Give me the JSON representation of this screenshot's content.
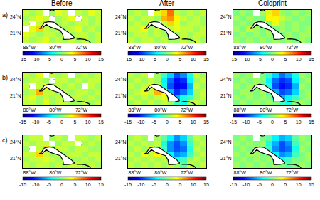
{
  "chart_data": {
    "type": "heatmap",
    "columns": [
      "Before",
      "After",
      "Coldprint"
    ],
    "rows": [
      "a)",
      "b)",
      "c)"
    ],
    "x": [
      -89,
      -87,
      -85,
      -83,
      -81,
      -79,
      -77,
      -75,
      -73,
      -71,
      -69,
      -67
    ],
    "y": [
      19.75,
      20.75,
      21.75,
      22.75,
      23.75,
      24.75
    ],
    "xlim": [
      -90,
      -66
    ],
    "ylim": [
      19.25,
      25.25
    ],
    "xticks": [
      {
        "value": -88,
        "label": "88°W"
      },
      {
        "value": -80,
        "label": "80°W"
      },
      {
        "value": -72,
        "label": "72°W"
      }
    ],
    "yticks": [
      {
        "value": 21,
        "label": "21°N"
      },
      {
        "value": 24,
        "label": "24°N"
      }
    ],
    "grid": true,
    "colorbar": {
      "range": [
        -15,
        15
      ],
      "ticks": [
        -15,
        -10,
        -5,
        0,
        5,
        10,
        15
      ]
    },
    "coastline": [
      {
        "lon": [
          -84.95,
          -84.4,
          -83.4,
          -82.0,
          -80.5,
          -79.0,
          -77.5,
          -76.0,
          -75.0,
          -74.2,
          -74.3,
          -75.6,
          -77.5,
          -77.7,
          -78.5,
          -80.0,
          -81.5,
          -82.8,
          -84.0,
          -84.95
        ],
        "lat": [
          21.85,
          22.0,
          22.9,
          23.1,
          23.0,
          22.4,
          21.8,
          21.2,
          20.7,
          20.2,
          20.05,
          19.9,
          19.85,
          20.7,
          21.5,
          21.8,
          22.1,
          22.6,
          21.9,
          21.85
        ]
      },
      {
        "lon": [
          -81.8,
          -81.2,
          -80.6,
          -80.3
        ],
        "lat": [
          25.25,
          25.1,
          25.15,
          25.25
        ]
      },
      {
        "lon": [
          -73.5,
          -72.5,
          -71.0,
          -69.8,
          -69.2
        ],
        "lat": [
          19.9,
          19.95,
          19.85,
          19.6,
          19.25
        ]
      }
    ],
    "panels": [
      [
        [
          [
            2,
            1,
            2,
            3,
            1,
            2,
            1,
            2,
            1,
            2,
            1,
            2
          ],
          [
            3,
            2,
            1,
            2,
            2,
            1,
            2,
            1,
            2,
            2,
            1,
            2
          ],
          [
            null,
            3,
            5,
            2,
            1,
            2,
            1,
            2,
            3,
            1,
            2,
            1
          ],
          [
            2,
            null,
            2,
            6,
            1,
            1,
            2,
            1,
            2,
            2,
            1,
            2
          ],
          [
            1,
            2,
            3,
            2,
            null,
            1,
            2,
            3,
            null,
            2,
            1,
            2
          ],
          [
            2,
            1,
            2,
            null,
            1,
            3,
            2,
            null,
            2,
            1,
            3,
            2
          ]
        ],
        [
          [
            2,
            1,
            2,
            2,
            1,
            2,
            1,
            1,
            2,
            1,
            2,
            1
          ],
          [
            1,
            2,
            2,
            1,
            2,
            1,
            -2,
            1,
            2,
            1,
            2,
            2
          ],
          [
            2,
            2,
            4,
            1,
            2,
            1,
            2,
            3,
            2,
            2,
            1,
            2
          ],
          [
            1,
            2,
            1,
            3,
            null,
            2,
            5,
            3,
            1,
            2,
            2,
            1
          ],
          [
            2,
            1,
            2,
            2,
            1,
            6,
            7,
            4,
            2,
            1,
            2,
            1
          ],
          [
            1,
            2,
            1,
            null,
            3,
            5,
            8,
            2,
            1,
            2,
            1,
            2
          ]
        ],
        [
          [
            1,
            0,
            1,
            0,
            1,
            0,
            1,
            0,
            1,
            0,
            1,
            0
          ],
          [
            0,
            1,
            0,
            1,
            0,
            1,
            -1,
            0,
            1,
            0,
            1,
            1
          ],
          [
            1,
            0,
            2,
            1,
            0,
            1,
            0,
            1,
            0,
            1,
            0,
            1
          ],
          [
            0,
            1,
            0,
            2,
            null,
            0,
            3,
            1,
            0,
            1,
            0,
            0
          ],
          [
            1,
            0,
            1,
            0,
            0,
            4,
            4,
            2,
            1,
            0,
            1,
            0
          ],
          [
            0,
            1,
            0,
            null,
            1,
            3,
            5,
            1,
            0,
            1,
            0,
            1
          ]
        ]
      ],
      [
        [
          [
            2,
            2,
            1,
            3,
            1,
            2,
            2,
            1,
            1,
            2,
            1,
            2
          ],
          [
            2,
            3,
            1,
            2,
            1,
            2,
            1,
            2,
            2,
            1,
            2,
            1
          ],
          [
            1,
            2,
            6,
            2,
            2,
            1,
            2,
            1,
            2,
            2,
            1,
            2
          ],
          [
            2,
            null,
            2,
            4,
            1,
            2,
            1,
            2,
            1,
            null,
            2,
            1
          ],
          [
            1,
            2,
            2,
            1,
            null,
            2,
            2,
            1,
            2,
            1,
            2,
            2
          ],
          [
            2,
            1,
            3,
            null,
            2,
            1,
            2,
            null,
            1,
            2,
            1,
            2
          ]
        ],
        [
          [
            1,
            2,
            1,
            2,
            1,
            2,
            1,
            -2,
            -3,
            1,
            2,
            1
          ],
          [
            2,
            1,
            2,
            1,
            2,
            3,
            -4,
            -6,
            -3,
            -2,
            1,
            2
          ],
          [
            1,
            2,
            3,
            2,
            6,
            4,
            -6,
            -10,
            -8,
            -5,
            1,
            2
          ],
          [
            2,
            1,
            2,
            3,
            2,
            -3,
            -9,
            -12,
            -11,
            -6,
            2,
            1
          ],
          [
            1,
            2,
            1,
            2,
            1,
            -4,
            -8,
            -11,
            -10,
            -4,
            1,
            2
          ],
          [
            2,
            1,
            2,
            null,
            1,
            -2,
            -5,
            -9,
            -7,
            -3,
            2,
            1
          ]
        ],
        [
          [
            0,
            1,
            0,
            1,
            0,
            1,
            0,
            -2,
            -3,
            0,
            1,
            0
          ],
          [
            1,
            0,
            1,
            0,
            1,
            0,
            -4,
            -6,
            -4,
            -2,
            0,
            1
          ],
          [
            0,
            1,
            1,
            0,
            1,
            -1,
            -6,
            -9,
            -8,
            -5,
            0,
            1
          ],
          [
            1,
            0,
            1,
            1,
            0,
            -3,
            -9,
            -11,
            -10,
            -6,
            1,
            0
          ],
          [
            0,
            1,
            0,
            1,
            0,
            -4,
            -8,
            -10,
            -9,
            -4,
            0,
            1
          ],
          [
            1,
            0,
            1,
            null,
            0,
            -2,
            -5,
            -8,
            -6,
            -3,
            1,
            0
          ]
        ]
      ],
      [
        [
          [
            2,
            1,
            2,
            2,
            1,
            2,
            1,
            2,
            2,
            1,
            2,
            1
          ],
          [
            1,
            2,
            2,
            3,
            2,
            1,
            2,
            1,
            1,
            2,
            1,
            2
          ],
          [
            2,
            2,
            5,
            2,
            1,
            2,
            1,
            2,
            2,
            1,
            2,
            2
          ],
          [
            1,
            null,
            2,
            5,
            1,
            2,
            2,
            1,
            2,
            2,
            1,
            1
          ],
          [
            2,
            1,
            2,
            2,
            null,
            1,
            2,
            2,
            null,
            1,
            2,
            1
          ],
          [
            1,
            2,
            2,
            null,
            1,
            2,
            1,
            null,
            2,
            2,
            1,
            2
          ]
        ],
        [
          [
            2,
            1,
            2,
            1,
            2,
            1,
            2,
            1,
            -1,
            2,
            1,
            2
          ],
          [
            1,
            2,
            1,
            2,
            1,
            2,
            -2,
            -3,
            -2,
            1,
            2,
            1
          ],
          [
            2,
            1,
            3,
            2,
            4,
            2,
            -4,
            -7,
            -6,
            -2,
            1,
            2
          ],
          [
            1,
            2,
            1,
            3,
            1,
            -2,
            -7,
            -9,
            -8,
            -3,
            2,
            1
          ],
          [
            2,
            1,
            2,
            1,
            2,
            -3,
            -7,
            -9,
            -7,
            -2,
            1,
            2
          ],
          [
            1,
            2,
            1,
            null,
            1,
            -1,
            -4,
            -7,
            -5,
            -1,
            2,
            1
          ]
        ],
        [
          [
            1,
            0,
            1,
            0,
            1,
            0,
            1,
            0,
            -1,
            0,
            1,
            0
          ],
          [
            0,
            1,
            0,
            1,
            0,
            1,
            -2,
            -3,
            -2,
            0,
            0,
            1
          ],
          [
            1,
            0,
            1,
            1,
            0,
            0,
            -4,
            -7,
            -6,
            -2,
            0,
            1
          ],
          [
            0,
            1,
            0,
            1,
            0,
            -2,
            -7,
            -9,
            -8,
            -3,
            1,
            0
          ],
          [
            1,
            0,
            1,
            0,
            1,
            -3,
            -6,
            -9,
            -7,
            -2,
            0,
            1
          ],
          [
            0,
            1,
            0,
            null,
            0,
            -1,
            -4,
            -6,
            -5,
            -1,
            1,
            0
          ]
        ]
      ]
    ]
  }
}
